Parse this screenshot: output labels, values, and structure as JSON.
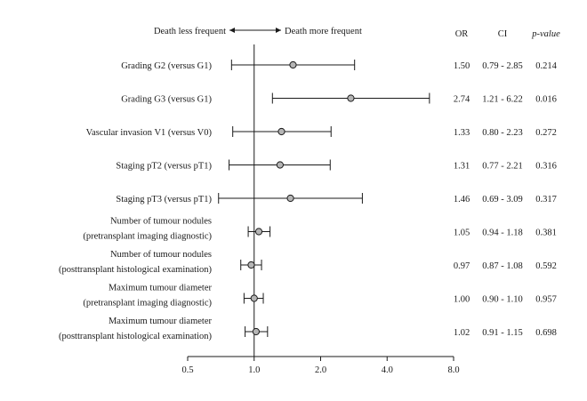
{
  "chart_data": {
    "type": "forest",
    "header": {
      "left": "Death less frequent",
      "right": "Death more frequent",
      "col_or": "OR",
      "col_ci": "CI",
      "col_p": "p-value"
    },
    "x_scale": "log2",
    "xlim": [
      0.5,
      8.0
    ],
    "x_ticks": [
      "0.5",
      "1.0",
      "2.0",
      "4.0",
      "8.0"
    ],
    "reference_line": 1.0,
    "rows": [
      {
        "label": [
          "Grading G2 (versus G1)"
        ],
        "or": 1.5,
        "lo": 0.79,
        "hi": 2.85,
        "or_text": "1.50",
        "ci_text": "0.79 - 2.85",
        "p_text": "0.214"
      },
      {
        "label": [
          "Grading G3 (versus G1)"
        ],
        "or": 2.74,
        "lo": 1.21,
        "hi": 6.22,
        "or_text": "2.74",
        "ci_text": "1.21 - 6.22",
        "p_text": "0.016"
      },
      {
        "label": [
          "Vascular invasion V1 (versus V0)"
        ],
        "or": 1.33,
        "lo": 0.8,
        "hi": 2.23,
        "or_text": "1.33",
        "ci_text": "0.80 - 2.23",
        "p_text": "0.272"
      },
      {
        "label": [
          "Staging pT2 (versus pT1)"
        ],
        "or": 1.31,
        "lo": 0.77,
        "hi": 2.21,
        "or_text": "1.31",
        "ci_text": "0.77 - 2.21",
        "p_text": "0.316"
      },
      {
        "label": [
          "Staging pT3 (versus pT1)"
        ],
        "or": 1.46,
        "lo": 0.69,
        "hi": 3.09,
        "or_text": "1.46",
        "ci_text": "0.69 - 3.09",
        "p_text": "0.317"
      },
      {
        "label": [
          "Number of tumour nodules",
          "(pretransplant imaging diagnostic)"
        ],
        "or": 1.05,
        "lo": 0.94,
        "hi": 1.18,
        "or_text": "1.05",
        "ci_text": "0.94 - 1.18",
        "p_text": "0.381"
      },
      {
        "label": [
          "Number of tumour nodules",
          "(posttransplant histological examination)"
        ],
        "or": 0.97,
        "lo": 0.87,
        "hi": 1.08,
        "or_text": "0.97",
        "ci_text": "0.87 - 1.08",
        "p_text": "0.592"
      },
      {
        "label": [
          "Maximum tumour diameter",
          "(pretransplant imaging diagnostic)"
        ],
        "or": 1.0,
        "lo": 0.9,
        "hi": 1.1,
        "or_text": "1.00",
        "ci_text": "0.90 - 1.10",
        "p_text": "0.957"
      },
      {
        "label": [
          "Maximum tumour diameter",
          "(posttransplant histological examination)"
        ],
        "or": 1.02,
        "lo": 0.91,
        "hi": 1.15,
        "or_text": "1.02",
        "ci_text": "0.91 - 1.15",
        "p_text": "0.698"
      }
    ],
    "colors": {
      "line": "#1a1a1a",
      "marker_fill": "#b5b5b5",
      "marker_stroke": "#1a1a1a"
    }
  }
}
